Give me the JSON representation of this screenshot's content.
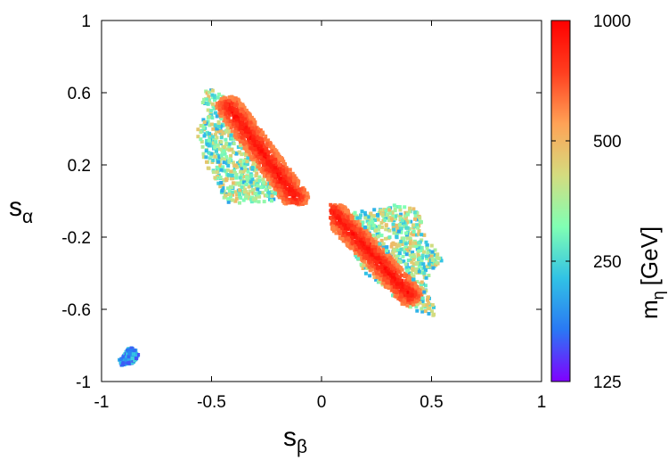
{
  "chart_data": {
    "type": "scatter",
    "title": "",
    "xlabel": {
      "base": "s",
      "sub": "β"
    },
    "ylabel": {
      "base": "s",
      "sub": "α"
    },
    "xlim": [
      -1,
      1
    ],
    "ylim": [
      -1,
      1
    ],
    "x_ticks": [
      "-1",
      "-0.5",
      "0",
      "0.5",
      "1"
    ],
    "y_ticks": [
      "1",
      "0.6",
      "0.2",
      "-0.2",
      "-0.6",
      "-1"
    ],
    "grid": false,
    "legend": "none",
    "colorbar": {
      "label": {
        "base": "m",
        "sub": "η",
        "unit": "[GeV]"
      },
      "scale": "log",
      "range": [
        125,
        1000
      ],
      "ticks": [
        "1000",
        "500",
        "250",
        "125"
      ],
      "colormap": [
        "#8000ff",
        "#2a78f4",
        "#31c2e5",
        "#80ffb4",
        "#d4dc7f",
        "#ffa256",
        "#ff3e1f",
        "#ff0000"
      ]
    },
    "regions": [
      {
        "name": "upper-left band",
        "outline": [
          [
            -0.52,
            0.63
          ],
          [
            -0.46,
            0.59
          ],
          [
            -0.4,
            0.53
          ],
          [
            -0.25,
            0.33
          ],
          [
            -0.1,
            0.1
          ],
          [
            -0.06,
            0.03
          ],
          [
            -0.14,
            -0.01
          ],
          [
            -0.24,
            0.0
          ],
          [
            -0.3,
            -0.02
          ],
          [
            -0.36,
            -0.02
          ],
          [
            -0.43,
            -0.01
          ],
          [
            -0.47,
            0.06
          ],
          [
            -0.56,
            0.3
          ],
          [
            -0.57,
            0.4
          ],
          [
            -0.52,
            0.49
          ],
          [
            -0.55,
            0.57
          ]
        ],
        "core": {
          "from": [
            -0.42,
            0.52
          ],
          "to": [
            -0.12,
            0.02
          ],
          "half_width": 0.06,
          "mass": "600–1000"
        },
        "edge_mass": "200–500"
      },
      {
        "name": "lower-right band",
        "outline": [
          [
            0.04,
            -0.05
          ],
          [
            0.2,
            -0.05
          ],
          [
            0.35,
            -0.02
          ],
          [
            0.43,
            -0.04
          ],
          [
            0.48,
            -0.2
          ],
          [
            0.55,
            -0.33
          ],
          [
            0.5,
            -0.38
          ],
          [
            0.47,
            -0.48
          ],
          [
            0.53,
            -0.64
          ],
          [
            0.45,
            -0.62
          ],
          [
            0.35,
            -0.55
          ],
          [
            0.2,
            -0.4
          ],
          [
            0.08,
            -0.16
          ]
        ],
        "core": {
          "from": [
            0.05,
            -0.06
          ],
          "to": [
            0.4,
            -0.52
          ],
          "half_width": 0.06,
          "mass": "600–1000"
        },
        "edge_mass": "200–500"
      },
      {
        "name": "bottom-left cluster",
        "outline": [
          [
            -0.92,
            -0.88
          ],
          [
            -0.88,
            -0.82
          ],
          [
            -0.85,
            -0.81
          ],
          [
            -0.83,
            -0.86
          ],
          [
            -0.86,
            -0.9
          ],
          [
            -0.91,
            -0.91
          ]
        ],
        "mass": "150–250"
      }
    ]
  }
}
